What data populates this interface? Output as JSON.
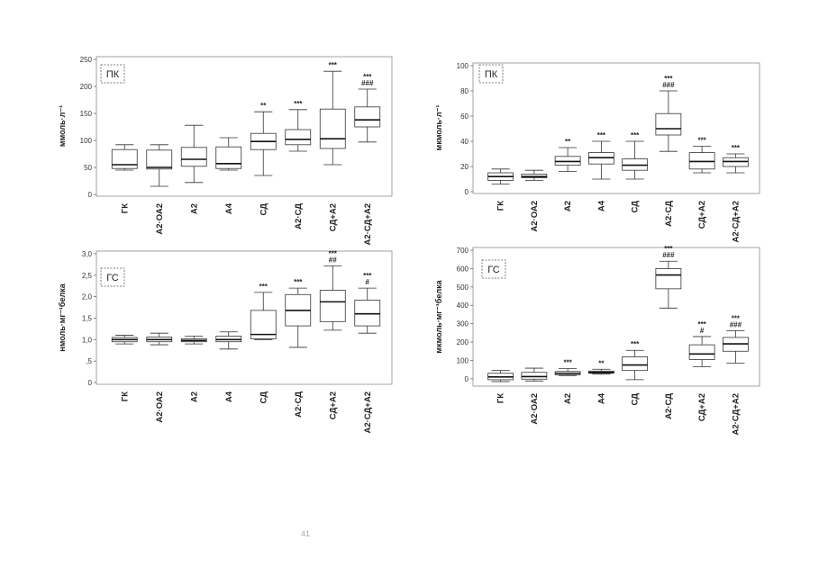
{
  "page_number": "41",
  "chart_data": [
    {
      "type": "box",
      "panel_label": "ПК",
      "ylabel": "ммоль·л⁻¹",
      "ylim": [
        0,
        250
      ],
      "yticks": [
        "0",
        "50",
        "100",
        "150",
        "200",
        "250"
      ],
      "categories": [
        "ГК",
        "А2·ОА2",
        "А2",
        "А4",
        "СД",
        "А2·СД",
        "СД+А2",
        "А2·СД+А2"
      ],
      "boxes": [
        {
          "min": 45,
          "q1": 48,
          "median": 55,
          "q3": 83,
          "max": 92,
          "sig": ""
        },
        {
          "min": 15,
          "q1": 47,
          "median": 50,
          "q3": 82,
          "max": 92,
          "sig": ""
        },
        {
          "min": 22,
          "q1": 52,
          "median": 65,
          "q3": 87,
          "max": 128,
          "sig": ""
        },
        {
          "min": 45,
          "q1": 48,
          "median": 57,
          "q3": 88,
          "max": 105,
          "sig": ""
        },
        {
          "min": 35,
          "q1": 83,
          "median": 98,
          "q3": 113,
          "max": 153,
          "sig": "**"
        },
        {
          "min": 80,
          "q1": 92,
          "median": 102,
          "q3": 120,
          "max": 157,
          "sig": "***"
        },
        {
          "min": 55,
          "q1": 85,
          "median": 103,
          "q3": 158,
          "max": 228,
          "sig": "***"
        },
        {
          "min": 97,
          "q1": 125,
          "median": 138,
          "q3": 162,
          "max": 195,
          "sig": "***\n###"
        }
      ]
    },
    {
      "type": "box",
      "panel_label": "ПК",
      "ylabel": "мкмоль·л⁻¹",
      "ylim": [
        0,
        100
      ],
      "yticks": [
        "0",
        "20",
        "40",
        "60",
        "80",
        "100"
      ],
      "categories": [
        "ГК",
        "А2·ОА2",
        "А2",
        "А4",
        "СД",
        "А2·СД",
        "СД+А2",
        "А2·СД+А2"
      ],
      "boxes": [
        {
          "min": 6,
          "q1": 9,
          "median": 12,
          "q3": 15,
          "max": 18,
          "sig": ""
        },
        {
          "min": 9,
          "q1": 11,
          "median": 12,
          "q3": 14,
          "max": 17,
          "sig": ""
        },
        {
          "min": 16,
          "q1": 21,
          "median": 24,
          "q3": 28,
          "max": 35,
          "sig": "**"
        },
        {
          "min": 10,
          "q1": 22,
          "median": 27,
          "q3": 31,
          "max": 40,
          "sig": "***"
        },
        {
          "min": 10,
          "q1": 17,
          "median": 21,
          "q3": 26,
          "max": 40,
          "sig": "***"
        },
        {
          "min": 32,
          "q1": 45,
          "median": 50,
          "q3": 62,
          "max": 80,
          "sig": "***\n###"
        },
        {
          "min": 15,
          "q1": 18,
          "median": 24,
          "q3": 31,
          "max": 36,
          "sig": "***"
        },
        {
          "min": 15,
          "q1": 20,
          "median": 24,
          "q3": 27,
          "max": 30,
          "sig": "***"
        }
      ]
    },
    {
      "type": "box",
      "panel_label": "ГС",
      "ylabel": "нмоль·мг⁻¹белка",
      "ylim": [
        0,
        3.0
      ],
      "yticks": [
        "0",
        ",5",
        "1,0",
        "1,5",
        "2,0",
        "2,5",
        "3,0"
      ],
      "categories": [
        "ГК",
        "А2·ОА2",
        "А2",
        "А4",
        "СД",
        "А2·СД",
        "СД+А2",
        "А2·СД+А2"
      ],
      "boxes": [
        {
          "min": 0.9,
          "q1": 0.95,
          "median": 1.0,
          "q3": 1.05,
          "max": 1.1,
          "sig": ""
        },
        {
          "min": 0.88,
          "q1": 0.95,
          "median": 1.0,
          "q3": 1.06,
          "max": 1.15,
          "sig": ""
        },
        {
          "min": 0.9,
          "q1": 0.95,
          "median": 0.98,
          "q3": 1.02,
          "max": 1.08,
          "sig": ""
        },
        {
          "min": 0.78,
          "q1": 0.95,
          "median": 1.0,
          "q3": 1.08,
          "max": 1.18,
          "sig": ""
        },
        {
          "min": 1.0,
          "q1": 1.02,
          "median": 1.12,
          "q3": 1.68,
          "max": 2.1,
          "sig": "***"
        },
        {
          "min": 0.82,
          "q1": 1.32,
          "median": 1.68,
          "q3": 2.05,
          "max": 2.2,
          "sig": "***"
        },
        {
          "min": 1.22,
          "q1": 1.42,
          "median": 1.88,
          "q3": 2.15,
          "max": 2.72,
          "sig": "***\n##"
        },
        {
          "min": 1.15,
          "q1": 1.32,
          "median": 1.6,
          "q3": 1.92,
          "max": 2.2,
          "sig": "***\n#"
        }
      ]
    },
    {
      "type": "box",
      "panel_label": "ГС",
      "ylabel": "мкмоль·мг⁻¹белка",
      "ylim": [
        -30,
        700
      ],
      "yticks": [
        "0",
        "100",
        "200",
        "300",
        "400",
        "500",
        "600",
        "700"
      ],
      "categories": [
        "ГК",
        "А2·ОА2",
        "А2",
        "А4",
        "СД",
        "А2·СД",
        "СД+А2",
        "А2·СД+А2"
      ],
      "boxes": [
        {
          "min": -15,
          "q1": -5,
          "median": 10,
          "q3": 30,
          "max": 45,
          "sig": ""
        },
        {
          "min": -12,
          "q1": -2,
          "median": 12,
          "q3": 35,
          "max": 58,
          "sig": ""
        },
        {
          "min": 18,
          "q1": 22,
          "median": 30,
          "q3": 40,
          "max": 55,
          "sig": "***"
        },
        {
          "min": 25,
          "q1": 30,
          "median": 35,
          "q3": 42,
          "max": 52,
          "sig": "**"
        },
        {
          "min": -5,
          "q1": 45,
          "median": 75,
          "q3": 120,
          "max": 155,
          "sig": "***"
        },
        {
          "min": 385,
          "q1": 490,
          "median": 565,
          "q3": 600,
          "max": 640,
          "sig": "***\n###"
        },
        {
          "min": 65,
          "q1": 105,
          "median": 135,
          "q3": 185,
          "max": 230,
          "sig": "***\n#"
        },
        {
          "min": 85,
          "q1": 150,
          "median": 190,
          "q3": 225,
          "max": 262,
          "sig": "***\n###"
        }
      ]
    }
  ]
}
